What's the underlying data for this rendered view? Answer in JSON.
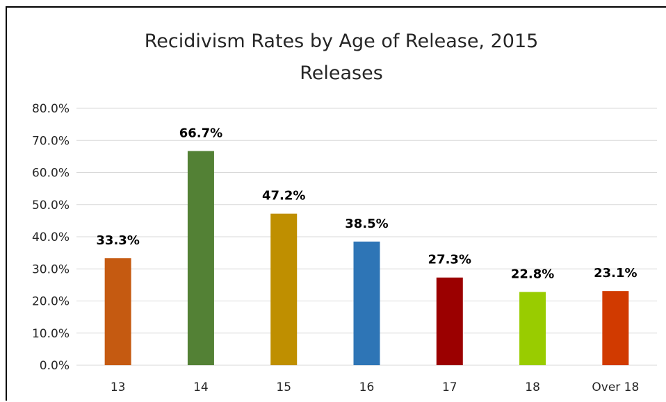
{
  "chart_data": {
    "type": "bar",
    "title": "Recidivism Rates by Age of Release, 2015",
    "subtitle": "Releases",
    "xlabel": "",
    "ylabel": "",
    "categories": [
      "13",
      "14",
      "15",
      "16",
      "17",
      "18",
      "Over 18"
    ],
    "values": [
      33.3,
      66.7,
      47.2,
      38.5,
      27.3,
      22.8,
      23.1
    ],
    "data_labels": [
      "33.3%",
      "66.7%",
      "47.2%",
      "38.5%",
      "27.3%",
      "22.8%",
      "23.1%"
    ],
    "bar_colors": [
      "#c55a11",
      "#538135",
      "#bf8f00",
      "#2e75b6",
      "#9b0000",
      "#99cc00",
      "#d13a00"
    ],
    "ylim": [
      0,
      80
    ],
    "yticks": [
      0,
      10,
      20,
      30,
      40,
      50,
      60,
      70,
      80
    ],
    "ytick_labels": [
      "0.0%",
      "10.0%",
      "20.0%",
      "30.0%",
      "40.0%",
      "50.0%",
      "60.0%",
      "70.0%",
      "80.0%"
    ],
    "grid": true,
    "legend": "none"
  }
}
